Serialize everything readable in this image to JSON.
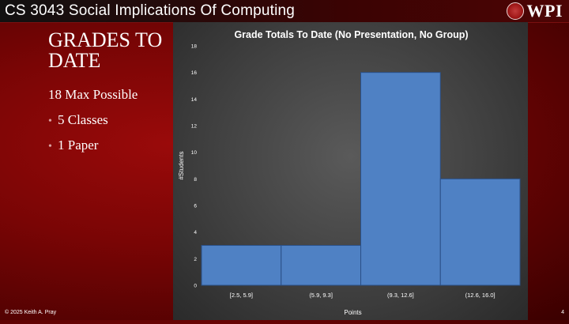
{
  "header": {
    "course_title": "CS 3043 Social Implications Of Computing",
    "logo_text": "WPI"
  },
  "slide": {
    "heading": "Grades to Date",
    "subheading": "18 Max Possible",
    "bullets": [
      "5 Classes",
      "1 Paper"
    ]
  },
  "footer": {
    "copyright": "© 2025 Keith A. Pray",
    "page_number": "4"
  },
  "colors": {
    "bar_fill": "#4f81c4",
    "bar_stroke": "#2a4f86",
    "axis_text": "#ffffff"
  },
  "chart_data": {
    "type": "bar",
    "title": "Grade Totals To Date (No Presentation, No Group)",
    "xlabel": "Points",
    "ylabel": "#Students",
    "categories": [
      "[2.5, 5.9]",
      "(5.9, 9.3]",
      "(9.3, 12.6]",
      "(12.6, 16.0]"
    ],
    "values": [
      3,
      3,
      16,
      8
    ],
    "ylim": [
      0,
      18
    ],
    "yticks": [
      0,
      2,
      4,
      6,
      8,
      10,
      12,
      14,
      16,
      18
    ],
    "grid": false,
    "legend": false
  }
}
